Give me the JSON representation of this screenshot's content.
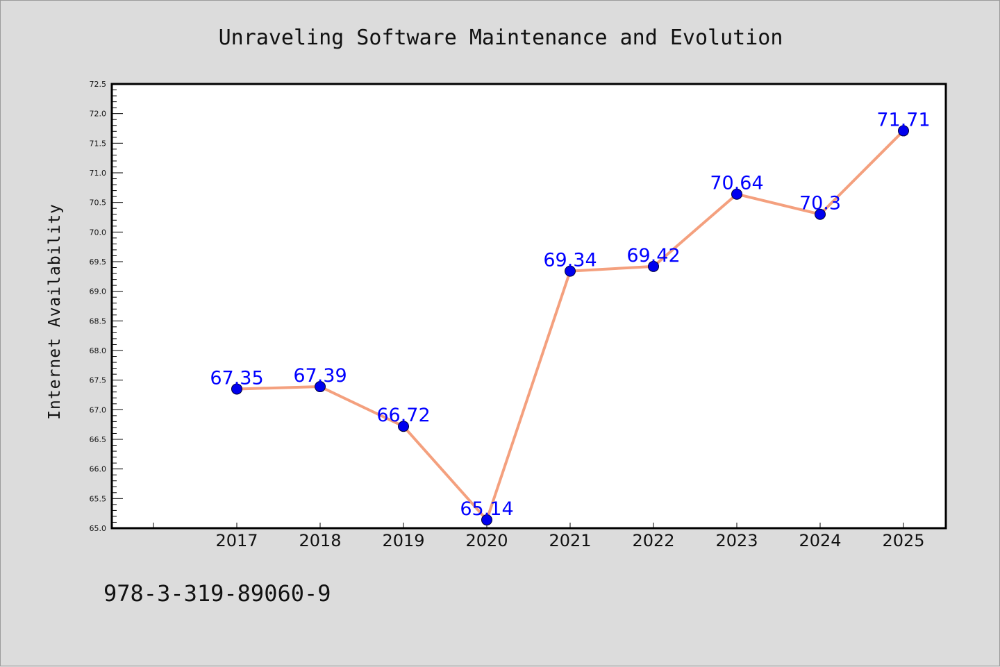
{
  "chart_data": {
    "type": "line",
    "title": "Unraveling Software Maintenance and Evolution",
    "xlabel": "",
    "ylabel": "Internet Availability",
    "categories": [
      "2017",
      "2018",
      "2019",
      "2020",
      "2021",
      "2022",
      "2023",
      "2024",
      "2025"
    ],
    "values": [
      67.35,
      67.39,
      66.72,
      65.14,
      69.34,
      69.42,
      70.64,
      70.3,
      71.71
    ],
    "data_labels": [
      "67.35",
      "67.39",
      "66.72",
      "65.14",
      "69.34",
      "69.42",
      "70.64",
      "70.3",
      "71.71"
    ],
    "ylim": [
      65.0,
      72.5
    ],
    "yticks": [
      "65.0",
      "65.5",
      "66.0",
      "66.5",
      "67.0",
      "67.5",
      "68.0",
      "68.5",
      "69.0",
      "69.5",
      "70.0",
      "70.5",
      "71.0",
      "71.5",
      "72.0",
      "72.5"
    ],
    "grid": false,
    "legend": "none",
    "colors": {
      "line": "#f4a07e",
      "marker": "#0000ee",
      "label": "#0000ff",
      "background": "#dcdcdc",
      "plot_background": "#ffffff"
    }
  },
  "footer": {
    "isbn": "978-3-319-89060-9"
  }
}
